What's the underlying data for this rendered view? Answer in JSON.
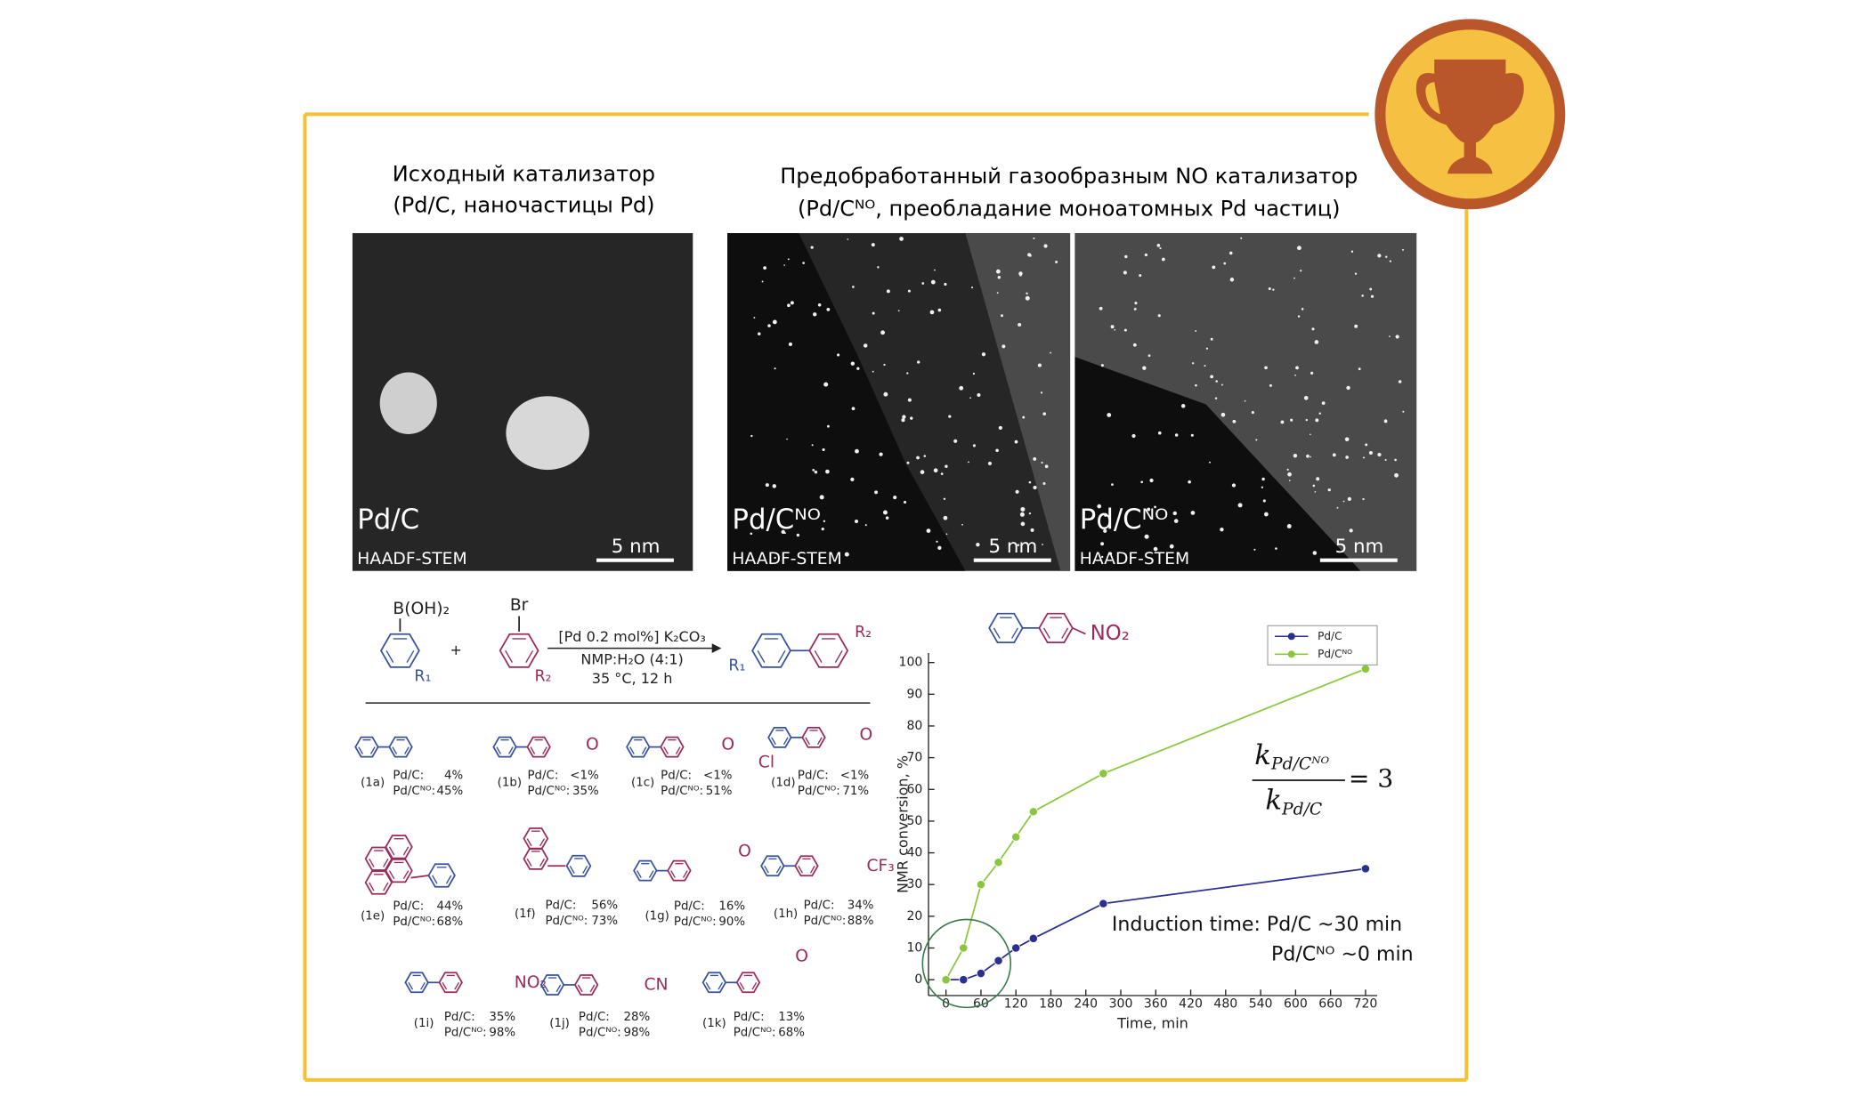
{
  "panels": {
    "left_title": [
      "Исходный катализатор",
      "(Pd/C, наночастицы Pd)"
    ],
    "right_title": [
      "Предобработанный газообразным NO катализатор",
      "(Pd/Cᴺᴼ, преобладание моноатомных Pd частиц)"
    ]
  },
  "micrographs": [
    {
      "label": "Pd/C",
      "mode": "HAADF-STEM",
      "scale": "5 nm"
    },
    {
      "label": "Pd/Cᴺᴼ",
      "mode": "HAADF-STEM",
      "scale": "5 nm"
    },
    {
      "label": "Pd/Cᴺᴼ",
      "mode": "HAADF-STEM",
      "scale": "5 nm"
    }
  ],
  "reaction": {
    "reagent1": "B(OH)₂",
    "plus": "+",
    "reagent2": "Br",
    "conditions": [
      "[Pd 0.2 mol%] K₂CO₃",
      "NMP:H₂O (4:1)",
      "35 °C, 12 h"
    ],
    "r1": "R₁",
    "r2": "R₂"
  },
  "yield_labels": [
    "Pd/C:",
    "Pd/Cᴺᴼ:"
  ],
  "compounds": [
    {
      "id": "(1a)",
      "pdc": "4%",
      "pdcno": "45%",
      "substituents": []
    },
    {
      "id": "(1b)",
      "pdc": "<1%",
      "pdcno": "35%",
      "substituents": [
        "O"
      ]
    },
    {
      "id": "(1c)",
      "pdc": "<1%",
      "pdcno": "51%",
      "substituents": [
        "O"
      ]
    },
    {
      "id": "(1d)",
      "pdc": "<1%",
      "pdcno": "71%",
      "substituents": [
        "Cl",
        "O"
      ]
    },
    {
      "id": "(1e)",
      "pdc": "44%",
      "pdcno": "68%",
      "substituents": []
    },
    {
      "id": "(1f)",
      "pdc": "56%",
      "pdcno": "73%",
      "substituents": []
    },
    {
      "id": "(1g)",
      "pdc": "16%",
      "pdcno": "90%",
      "substituents": [
        "O"
      ]
    },
    {
      "id": "(1h)",
      "pdc": "34%",
      "pdcno": "88%",
      "substituents": [
        "CF₃"
      ]
    },
    {
      "id": "(1i)",
      "pdc": "35%",
      "pdcno": "98%",
      "substituents": [
        "NO₂"
      ]
    },
    {
      "id": "(1j)",
      "pdc": "28%",
      "pdcno": "98%",
      "substituents": [
        "CN"
      ]
    },
    {
      "id": "(1k)",
      "pdc": "13%",
      "pdcno": "68%",
      "substituents": [
        "O"
      ]
    }
  ],
  "chart_data": {
    "type": "line",
    "x_label": "Time, min",
    "y_label": "NMR conversion, %",
    "molecule_label": "NO₂",
    "x": [
      0,
      30,
      60,
      90,
      120,
      150,
      270,
      720
    ],
    "series": [
      {
        "name": "Pd/C",
        "color": "#2b2f8f",
        "values": [
          0,
          0,
          2,
          6,
          10,
          13,
          24,
          35
        ]
      },
      {
        "name": "Pd/Cᴺᴼ",
        "color": "#8cc63f",
        "values": [
          0,
          10,
          30,
          37,
          45,
          53,
          65,
          98
        ]
      }
    ],
    "xlim": [
      -30,
      740
    ],
    "ylim": [
      -5,
      103
    ],
    "xticks": [
      0,
      60,
      120,
      180,
      240,
      300,
      360,
      420,
      480,
      540,
      600,
      660,
      720
    ],
    "yticks": [
      0,
      10,
      20,
      30,
      40,
      50,
      60,
      70,
      80,
      90,
      100
    ],
    "annotations": [
      "Induction time:  Pd/C ~30 min",
      "Pd/Cᴺᴼ ~0 min"
    ],
    "rate_ratio": {
      "numerator": "k",
      "numerator_sub": "Pd/Cᴺᴼ",
      "denominator": "k",
      "denominator_sub": "Pd/C",
      "result": "= 3"
    }
  }
}
